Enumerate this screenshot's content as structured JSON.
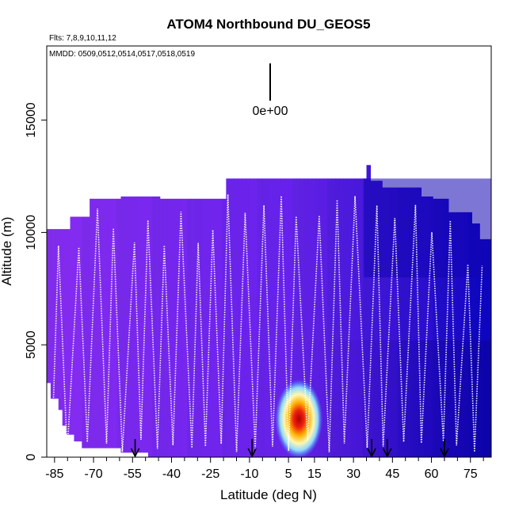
{
  "chart_data": {
    "type": "heatmap",
    "title": "ATOM4 Northbound DU_GEOS5",
    "subtitle_flights": "Flts: 7,8,9,10,11,12",
    "subtitle_dates": "MMDD: 0509,0512,0514,0517,0518,0519",
    "scale_label": "0e+00",
    "xlabel": "Latitude (deg N)",
    "ylabel": "Altitude (m)",
    "xlim": [
      -88,
      83
    ],
    "ylim": [
      0,
      18300
    ],
    "x_ticks": [
      -85,
      -70,
      -55,
      -40,
      -25,
      -10,
      5,
      15,
      30,
      45,
      60,
      75
    ],
    "x_tick_labels": [
      "-85",
      "-70",
      "-55",
      "-40",
      "-25",
      "-10",
      "5",
      "15",
      "30",
      "45",
      "60",
      "75"
    ],
    "x_minor_ticks": [
      -80,
      -75,
      -65,
      -60,
      -50,
      -45,
      -35,
      -30,
      -20,
      -15,
      -5,
      0,
      10,
      20,
      25,
      35,
      40,
      50,
      55,
      65,
      70,
      80
    ],
    "y_ticks": [
      0,
      5000,
      10000,
      15000
    ],
    "y_tick_labels": [
      "0",
      "5000",
      "10000",
      "15000"
    ],
    "arrow_latitudes": [
      -54,
      -9,
      37,
      43,
      65
    ],
    "curtain_tops": [
      [
        -88,
        10150
      ],
      [
        -81,
        10150
      ],
      [
        -80,
        10700
      ],
      [
        -72,
        11500
      ],
      [
        -60,
        11600
      ],
      [
        -45,
        11500
      ],
      [
        -20,
        12400
      ],
      [
        0,
        12400
      ],
      [
        20,
        12400
      ],
      [
        33,
        12400
      ],
      [
        34,
        13000
      ],
      [
        36,
        12300
      ],
      [
        40,
        12000
      ],
      [
        55,
        11600
      ],
      [
        60,
        11500
      ],
      [
        66,
        10900
      ],
      [
        74,
        10400
      ],
      [
        78,
        9700
      ],
      [
        83,
        9400
      ]
    ],
    "curtain_bottom_left": [
      [
        -88,
        3300
      ],
      [
        -85,
        2600
      ],
      [
        -83,
        2100
      ],
      [
        -81,
        1400
      ],
      [
        -79,
        1000
      ],
      [
        -76,
        700
      ],
      [
        -60,
        400
      ],
      [
        -50,
        200
      ]
    ],
    "tracer_hotspot": {
      "center_lat": 9,
      "center_alt": 1700,
      "peak_value": "high"
    },
    "flight_profiles_lat_bounds": [
      -86,
      80
    ]
  }
}
